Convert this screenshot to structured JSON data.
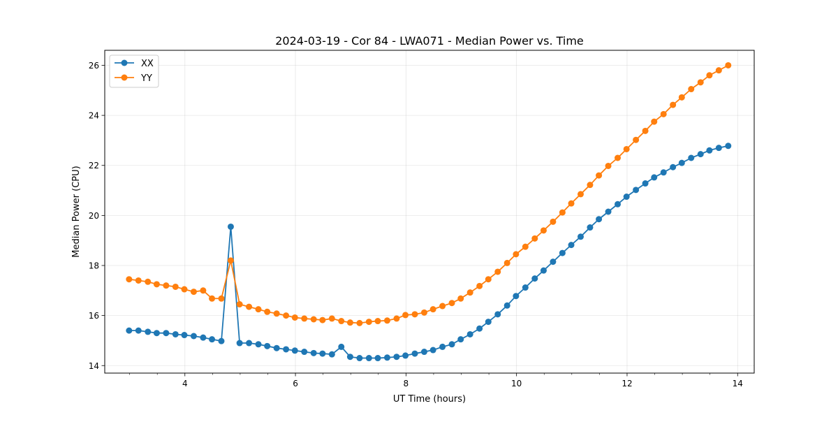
{
  "chart_data": {
    "type": "line",
    "title": "2024-03-19 - Cor 84 - LWA071 - Median Power vs. Time",
    "xlabel": "UT Time (hours)",
    "ylabel": "Median Power (CPU)",
    "xlim": [
      2.55,
      14.3
    ],
    "ylim": [
      13.7,
      26.6
    ],
    "x_ticks": [
      4,
      6,
      8,
      10,
      12,
      14
    ],
    "x_tick_labels": [
      "4",
      "6",
      "8",
      "10",
      "12",
      "14"
    ],
    "x_minor_step": 0.5,
    "y_ticks": [
      14,
      16,
      18,
      20,
      22,
      24,
      26
    ],
    "y_tick_labels": [
      "14",
      "16",
      "18",
      "20",
      "22",
      "24",
      "26"
    ],
    "grid": true,
    "legend_position": "top-left",
    "colors": {
      "XX": "#1f77b4",
      "YY": "#ff7f0e"
    },
    "x": [
      2.99,
      3.16,
      3.33,
      3.49,
      3.66,
      3.83,
      3.99,
      4.16,
      4.33,
      4.49,
      4.66,
      4.83,
      4.99,
      5.16,
      5.33,
      5.49,
      5.66,
      5.83,
      5.99,
      6.16,
      6.33,
      6.49,
      6.66,
      6.83,
      6.99,
      7.16,
      7.33,
      7.49,
      7.66,
      7.83,
      7.99,
      8.16,
      8.33,
      8.49,
      8.66,
      8.83,
      8.99,
      9.16,
      9.33,
      9.49,
      9.66,
      9.83,
      9.99,
      10.16,
      10.33,
      10.49,
      10.66,
      10.83,
      10.99,
      11.16,
      11.33,
      11.49,
      11.66,
      11.83,
      11.99,
      12.16,
      12.33,
      12.49,
      12.66,
      12.83,
      12.99,
      13.16,
      13.33,
      13.49,
      13.66,
      13.83
    ],
    "series": [
      {
        "name": "XX",
        "values": [
          15.4,
          15.4,
          15.35,
          15.3,
          15.3,
          15.25,
          15.22,
          15.18,
          15.12,
          15.05,
          14.98,
          19.55,
          14.9,
          14.9,
          14.85,
          14.78,
          14.7,
          14.65,
          14.6,
          14.55,
          14.5,
          14.48,
          14.45,
          14.75,
          14.35,
          14.3,
          14.3,
          14.3,
          14.32,
          14.35,
          14.4,
          14.48,
          14.55,
          14.62,
          14.75,
          14.85,
          15.05,
          15.25,
          15.48,
          15.75,
          16.05,
          16.4,
          16.78,
          17.12,
          17.48,
          17.8,
          18.15,
          18.5,
          18.82,
          19.15,
          19.52,
          19.85,
          20.15,
          20.45,
          20.75,
          21.02,
          21.28,
          21.52,
          21.72,
          21.93,
          22.1,
          22.3,
          22.45,
          22.6,
          22.7,
          22.78
        ]
      },
      {
        "name": "YY",
        "values": [
          17.45,
          17.4,
          17.35,
          17.25,
          17.2,
          17.15,
          17.05,
          16.95,
          17.0,
          16.68,
          16.68,
          18.2,
          16.45,
          16.35,
          16.25,
          16.15,
          16.08,
          16.0,
          15.92,
          15.88,
          15.85,
          15.82,
          15.88,
          15.78,
          15.72,
          15.7,
          15.75,
          15.78,
          15.8,
          15.88,
          16.02,
          16.05,
          16.12,
          16.25,
          16.38,
          16.5,
          16.68,
          16.92,
          17.18,
          17.45,
          17.75,
          18.1,
          18.45,
          18.75,
          19.08,
          19.4,
          19.75,
          20.12,
          20.48,
          20.85,
          21.22,
          21.6,
          21.98,
          22.3,
          22.65,
          23.02,
          23.38,
          23.75,
          24.05,
          24.42,
          24.72,
          25.05,
          25.32,
          25.6,
          25.8,
          26.0
        ]
      }
    ]
  }
}
